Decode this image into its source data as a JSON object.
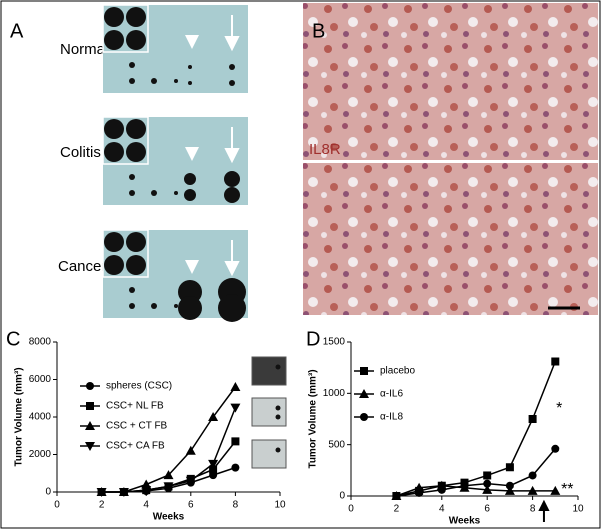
{
  "panels": {
    "a": {
      "letter": "A",
      "rows": [
        "Normal",
        "Colitis",
        "Cancer"
      ]
    },
    "b": {
      "letter": "B",
      "stain": "IL8R"
    }
  },
  "chart_data": [
    {
      "type": "line",
      "panel_letter": "C",
      "xlabel": "Weeks",
      "ylabel": "Tumor Volume (mm³)",
      "x": [
        2,
        3,
        4,
        5,
        6,
        7,
        8
      ],
      "xlim": [
        0,
        10
      ],
      "xticks": [
        0,
        2,
        4,
        6,
        8,
        10
      ],
      "ylim": [
        0,
        8000
      ],
      "yticks": [
        0,
        2000,
        4000,
        6000,
        8000
      ],
      "series": [
        {
          "name": "spheres (CSC)",
          "marker": "circle",
          "color": "#000000",
          "values": [
            0,
            0,
            50,
            200,
            500,
            900,
            1300
          ]
        },
        {
          "name": "CSC+ NL FB",
          "marker": "square",
          "color": "#000000",
          "values": [
            0,
            0,
            100,
            300,
            700,
            1200,
            2700
          ]
        },
        {
          "name": "CSC + CT FB",
          "marker": "triangle-up",
          "color": "#000000",
          "values": [
            0,
            0,
            400,
            900,
            2200,
            4000,
            5600
          ]
        },
        {
          "name": "CSC+ CA FB",
          "marker": "triangle-down",
          "color": "#000000",
          "values": [
            0,
            0,
            100,
            300,
            600,
            1500,
            4500
          ]
        }
      ]
    },
    {
      "type": "line",
      "panel_letter": "D",
      "xlabel": "Weeks",
      "ylabel": "Tumor Volume (mm³)",
      "x": [
        2,
        3,
        4,
        5,
        6,
        7,
        8,
        9
      ],
      "xlim": [
        0,
        10
      ],
      "xticks": [
        0,
        2,
        4,
        6,
        8,
        10
      ],
      "ylim": [
        0,
        1500
      ],
      "yticks": [
        0,
        500,
        1000,
        1500
      ],
      "annotations": [
        "*",
        "**"
      ],
      "series": [
        {
          "name": "placebo",
          "marker": "square",
          "color": "#000000",
          "values": [
            0,
            50,
            100,
            130,
            200,
            280,
            750,
            1310
          ]
        },
        {
          "name": "α-IL6",
          "marker": "triangle-up",
          "color": "#000000",
          "values": [
            0,
            80,
            100,
            80,
            60,
            50,
            50,
            50
          ]
        },
        {
          "name": "α-IL8",
          "marker": "circle",
          "color": "#000000",
          "values": [
            0,
            30,
            60,
            100,
            120,
            100,
            200,
            460
          ]
        }
      ]
    }
  ]
}
